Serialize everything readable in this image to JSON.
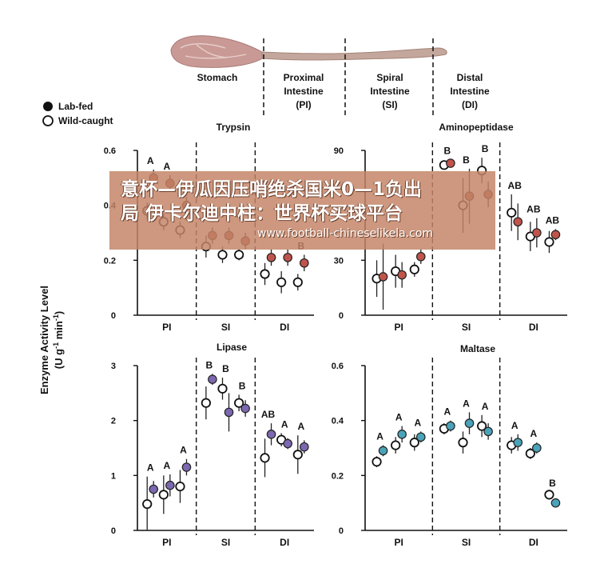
{
  "header": {
    "sections": [
      {
        "lines": [
          "Stomach"
        ]
      },
      {
        "lines": [
          "Proximal",
          "Intestine",
          "(PI)"
        ]
      },
      {
        "lines": [
          "Spiral",
          "Intestine",
          "(SI)"
        ]
      },
      {
        "lines": [
          "Distal",
          "Intestine",
          "(DI)"
        ]
      }
    ]
  },
  "legend": {
    "lab_fed": "Lab-fed",
    "wild_caught": "Wild-caught"
  },
  "y_axis_title": {
    "line1": "Enzyme Activity Level",
    "line2_pre": "(U g",
    "line2_exp1": "-1",
    "line2_mid": " min",
    "line2_exp2": "-1",
    "line2_post": ")"
  },
  "banner": {
    "line1": "意杯—伊瓜因压哨绝杀国米0—1负出",
    "line2": "局 伊卡尔迪中柱：世界杯买球平台",
    "line3": "www.football-chineselikela.com"
  },
  "chart_data": [
    {
      "type": "scatter",
      "title": "Trypsin",
      "ylim": [
        0,
        0.6
      ],
      "yticks": [
        "0",
        "0.2",
        "0.4",
        "0.6"
      ],
      "groups": [
        "PI",
        "SI",
        "DI"
      ],
      "color": "#c0544b",
      "series": [
        {
          "name": "Lab-fed",
          "values": [
            0.5,
            0.48,
            0.4,
            0.29,
            0.29,
            0.27,
            0.21,
            0.21,
            0.19
          ],
          "err": [
            0.03,
            0.03,
            0.03,
            0.03,
            0.03,
            0.03,
            0.03,
            0.03,
            0.03
          ]
        },
        {
          "name": "Wild-caught",
          "values": [
            0.38,
            0.34,
            0.31,
            0.25,
            0.22,
            0.22,
            0.15,
            0.12,
            0.12
          ],
          "err": [
            0.03,
            0.03,
            0.03,
            0.04,
            0.03,
            0.02,
            0.04,
            0.04,
            0.03
          ]
        }
      ],
      "letters": [
        "A",
        "A",
        "A",
        "",
        "",
        "",
        "",
        "",
        "B"
      ]
    },
    {
      "type": "scatter",
      "title": "Aminopeptidase",
      "ylim": [
        0,
        90
      ],
      "yticks": [
        "0",
        "30",
        "",
        "90"
      ],
      "groups": [
        "PI",
        "SI",
        "DI"
      ],
      "color": "#c0544b",
      "series": [
        {
          "name": "Lab-fed",
          "values": [
            21,
            22,
            32,
            83,
            65,
            66,
            51,
            45,
            44
          ],
          "err": [
            18,
            7,
            4,
            2,
            15,
            7,
            10,
            8,
            3
          ]
        },
        {
          "name": "Wild-caught",
          "values": [
            20,
            24,
            25,
            82,
            60,
            79,
            56,
            43,
            40
          ],
          "err": [
            10,
            9,
            4,
            2,
            15,
            7,
            10,
            8,
            6
          ]
        }
      ],
      "letters": [
        "",
        "",
        "",
        "B",
        "B",
        "B",
        "AB",
        "AB",
        "AB"
      ]
    },
    {
      "type": "scatter",
      "title": "Lipase",
      "ylim": [
        0,
        3
      ],
      "yticks": [
        "0",
        "1",
        "2",
        "3"
      ],
      "groups": [
        "PI",
        "SI",
        "DI"
      ],
      "color": "#7b68b0",
      "series": [
        {
          "name": "Lab-fed",
          "values": [
            0.75,
            0.82,
            1.15,
            2.75,
            2.15,
            2.22,
            1.75,
            1.58,
            1.52
          ],
          "err": [
            0.15,
            0.2,
            0.15,
            0.1,
            0.35,
            0.15,
            0.2,
            0.1,
            0.12
          ]
        },
        {
          "name": "Wild-caught",
          "values": [
            0.48,
            0.65,
            0.8,
            2.32,
            2.58,
            2.32,
            1.32,
            1.65,
            1.38
          ],
          "err": [
            0.5,
            0.35,
            0.3,
            0.3,
            0.2,
            0.15,
            0.35,
            0.12,
            0.35
          ]
        }
      ],
      "letters": [
        "A",
        "A",
        "A",
        "B",
        "B",
        "B",
        "AB",
        "A",
        "A"
      ]
    },
    {
      "type": "scatter",
      "title": "Maltase",
      "ylim": [
        0,
        0.6
      ],
      "yticks": [
        "0",
        "0.2",
        "0.4",
        "0.6"
      ],
      "groups": [
        "PI",
        "SI",
        "DI"
      ],
      "color": "#4aa3b8",
      "series": [
        {
          "name": "Lab-fed",
          "values": [
            0.29,
            0.35,
            0.34,
            0.38,
            0.39,
            0.36,
            0.32,
            0.3,
            0.1
          ],
          "err": [
            0.02,
            0.03,
            0.02,
            0.02,
            0.04,
            0.03,
            0.03,
            0.02,
            0.01
          ]
        },
        {
          "name": "Wild-caught",
          "values": [
            0.25,
            0.31,
            0.32,
            0.37,
            0.32,
            0.38,
            0.31,
            0.28,
            0.13
          ],
          "err": [
            0.02,
            0.03,
            0.03,
            0.02,
            0.04,
            0.04,
            0.03,
            0.02,
            0.01
          ]
        }
      ],
      "letters": [
        "A",
        "A",
        "A",
        "A",
        "A",
        "A",
        "A",
        "A",
        "B"
      ]
    }
  ]
}
